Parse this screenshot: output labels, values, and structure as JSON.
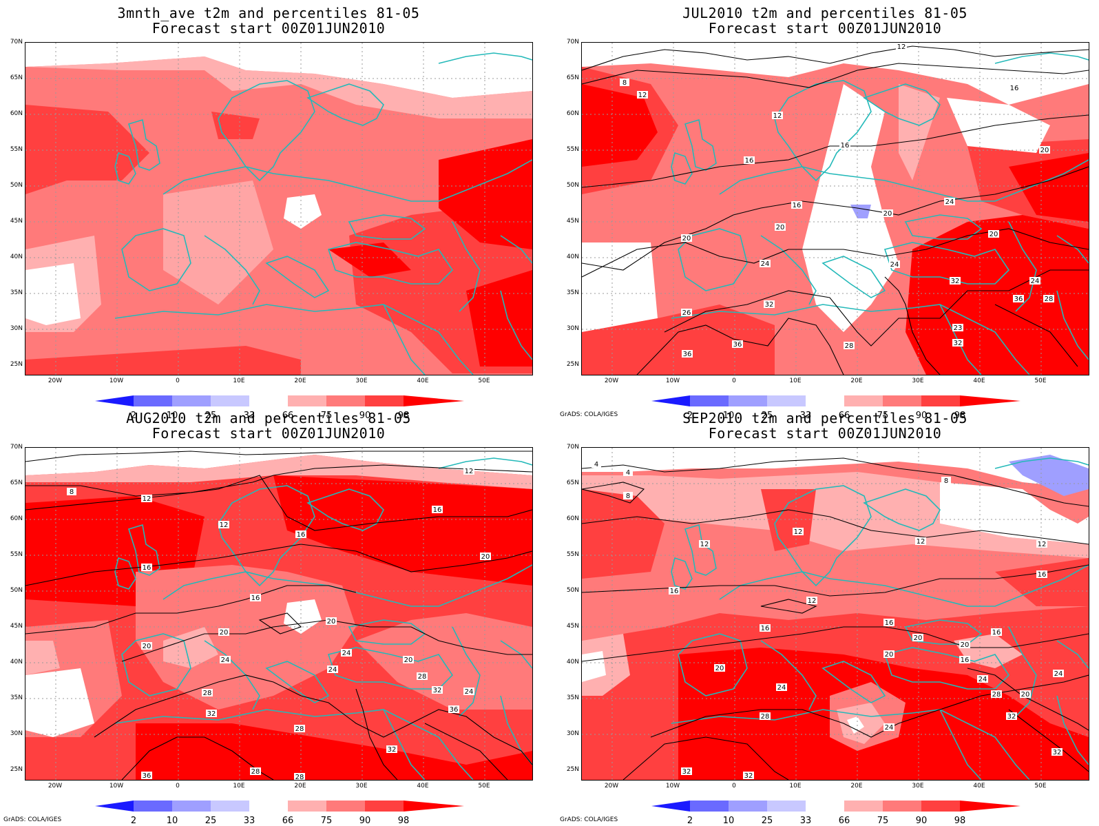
{
  "panels": [
    {
      "title": "3mnth_ave t2m and percentiles 81-05",
      "subtitle": "Forecast start 00Z01JUN2010",
      "credit": "",
      "contour_labels": []
    },
    {
      "title": "JUL2010 t2m and percentiles 81-05",
      "subtitle": "Forecast start 00Z01JUN2010",
      "credit": "GrADS: COLA/IGES",
      "contour_labels": [
        "8",
        "12",
        "12",
        "12",
        "16",
        "16",
        "16",
        "16",
        "20",
        "20",
        "20",
        "20",
        "20",
        "24",
        "24",
        "24",
        "24",
        "28",
        "32",
        "32",
        "36",
        "36",
        "36",
        "26",
        "28",
        "23",
        "32"
      ]
    },
    {
      "title": "AUG2010 t2m and percentiles 81-05",
      "subtitle": "Forecast start 00Z01JUN2010",
      "credit": "GrADS: COLA/IGES",
      "contour_labels": [
        "8",
        "12",
        "12",
        "12",
        "16",
        "16",
        "16",
        "16",
        "20",
        "20",
        "20",
        "20",
        "20",
        "24",
        "24",
        "24",
        "24",
        "28",
        "28",
        "28",
        "32",
        "32",
        "32",
        "36",
        "36",
        "28",
        "28"
      ]
    },
    {
      "title": "SEP2010 t2m and percentiles 81-05",
      "subtitle": "Forecast start 00Z01JUN2010",
      "credit": "GrADS: COLA/IGES",
      "contour_labels": [
        "4",
        "4",
        "8",
        "8",
        "12",
        "12",
        "12",
        "12",
        "12",
        "16",
        "16",
        "16",
        "16",
        "16",
        "16",
        "20",
        "20",
        "20",
        "20",
        "20",
        "24",
        "24",
        "24",
        "24",
        "28",
        "28",
        "32",
        "32",
        "32",
        "32"
      ]
    }
  ],
  "axes": {
    "lat_labels": [
      "70N",
      "65N",
      "60N",
      "55N",
      "50N",
      "45N",
      "40N",
      "35N",
      "30N",
      "25N"
    ],
    "lon_labels": [
      "20W",
      "10W",
      "0",
      "10E",
      "20E",
      "30E",
      "40E",
      "50E"
    ]
  },
  "colorbar": {
    "labels": [
      "2",
      "10",
      "25",
      "33",
      "66",
      "75",
      "90",
      "98"
    ],
    "colors": [
      "#1a1aff",
      "#6a6aff",
      "#9f9fff",
      "#c8c8ff",
      "#ffffff",
      "#ffb0b0",
      "#ff7a7a",
      "#ff4040",
      "#ff0000"
    ]
  }
}
